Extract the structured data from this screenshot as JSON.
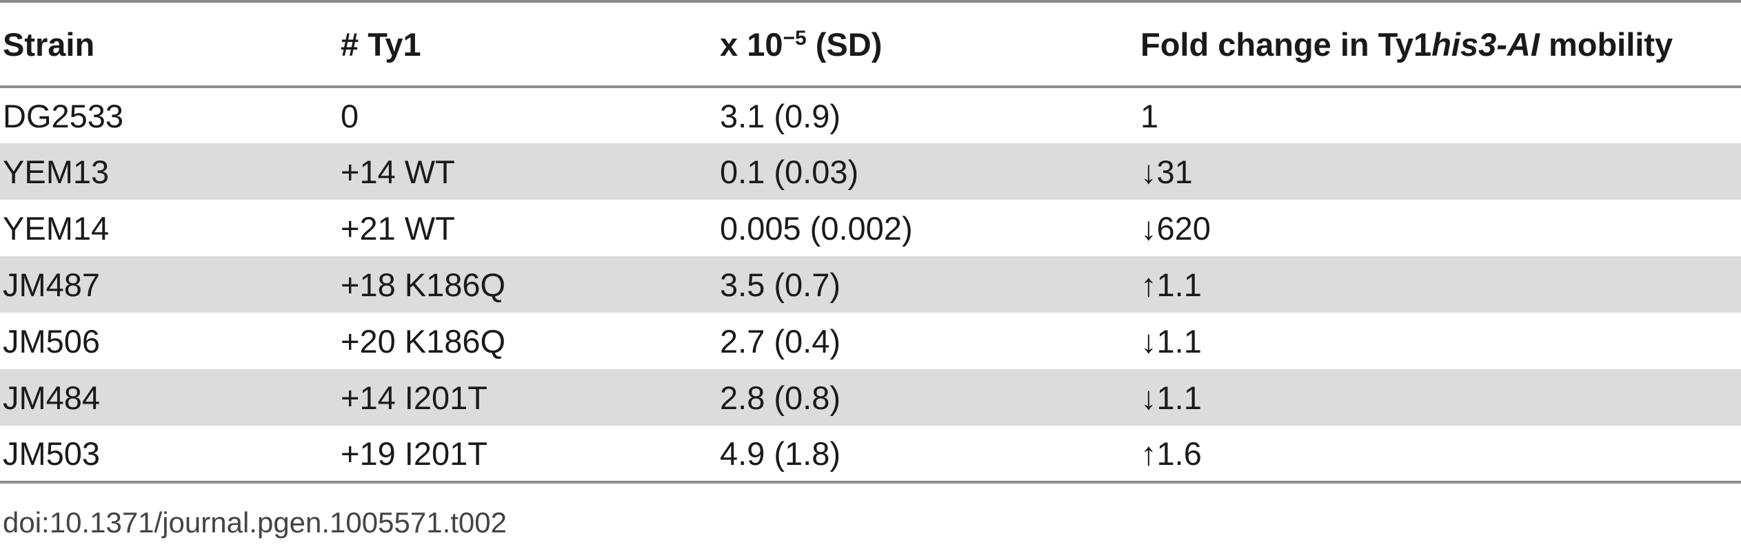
{
  "table": {
    "headers": {
      "strain": "Strain",
      "ty1": "# Ty1",
      "mobility_prefix": "x 10",
      "mobility_exp": "−5",
      "mobility_suffix": " (SD)",
      "fold_prefix": "Fold change in Ty1",
      "fold_italic": "his3-AI",
      "fold_suffix": " mobility"
    },
    "rows": [
      {
        "strain": "DG2533",
        "ty1": "0",
        "mobility": "3.1 (0.9)",
        "fold": "1",
        "shaded": false
      },
      {
        "strain": "YEM13",
        "ty1": "+14 WT",
        "mobility": "0.1 (0.03)",
        "fold": "↓31",
        "shaded": true
      },
      {
        "strain": "YEM14",
        "ty1": "+21 WT",
        "mobility": "0.005 (0.002)",
        "fold": "↓620",
        "shaded": false
      },
      {
        "strain": "JM487",
        "ty1": "+18 K186Q",
        "mobility": "3.5 (0.7)",
        "fold": "↑1.1",
        "shaded": true
      },
      {
        "strain": "JM506",
        "ty1": "+20 K186Q",
        "mobility": "2.7 (0.4)",
        "fold": "↓1.1",
        "shaded": false
      },
      {
        "strain": "JM484",
        "ty1": "+14 I201T",
        "mobility": "2.8 (0.8)",
        "fold": "↓1.1",
        "shaded": true
      },
      {
        "strain": "JM503",
        "ty1": "+19 I201T",
        "mobility": "4.9 (1.8)",
        "fold": "↑1.6",
        "shaded": false
      }
    ]
  },
  "doi": "doi:10.1371/journal.pgen.1005571.t002",
  "colors": {
    "shade": "#dcdcdc",
    "rule": "#8c8c8c"
  }
}
